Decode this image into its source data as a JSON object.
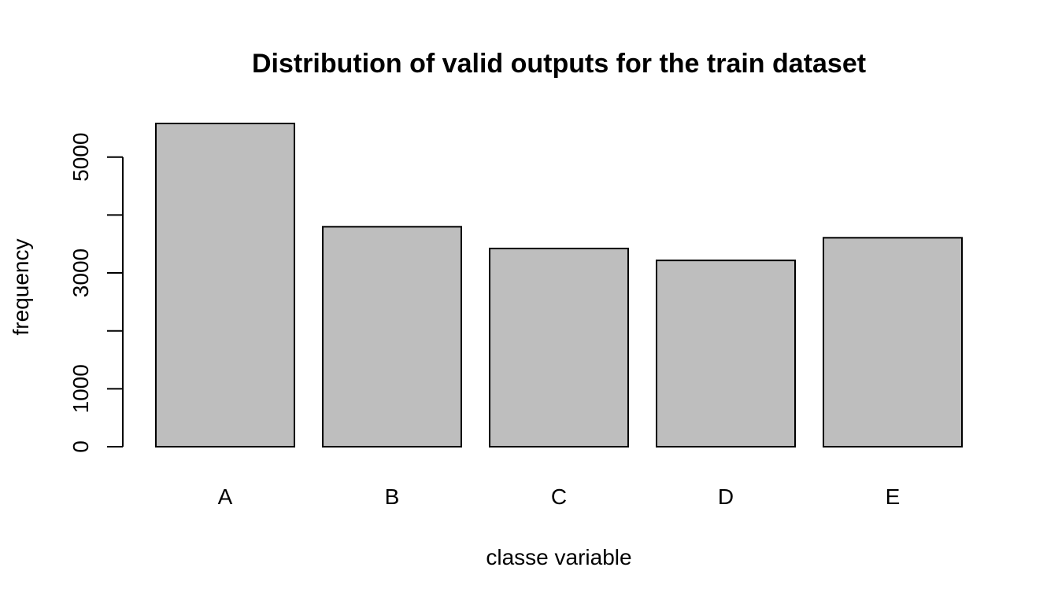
{
  "chart_data": {
    "type": "bar",
    "title": "Distribution of valid outputs for the train dataset",
    "xlabel": "classe variable",
    "ylabel": "frequency",
    "categories": [
      "A",
      "B",
      "C",
      "D",
      "E"
    ],
    "values": [
      5580,
      3797,
      3422,
      3216,
      3607
    ],
    "ylim": [
      0,
      5580
    ],
    "y_ticks": [
      0,
      1000,
      2000,
      3000,
      4000,
      5000
    ],
    "y_tick_labels": [
      "0",
      "1000",
      "",
      "3000",
      "",
      "5000"
    ],
    "bar_color": "#bebebe",
    "grid": false,
    "legend": "none"
  }
}
